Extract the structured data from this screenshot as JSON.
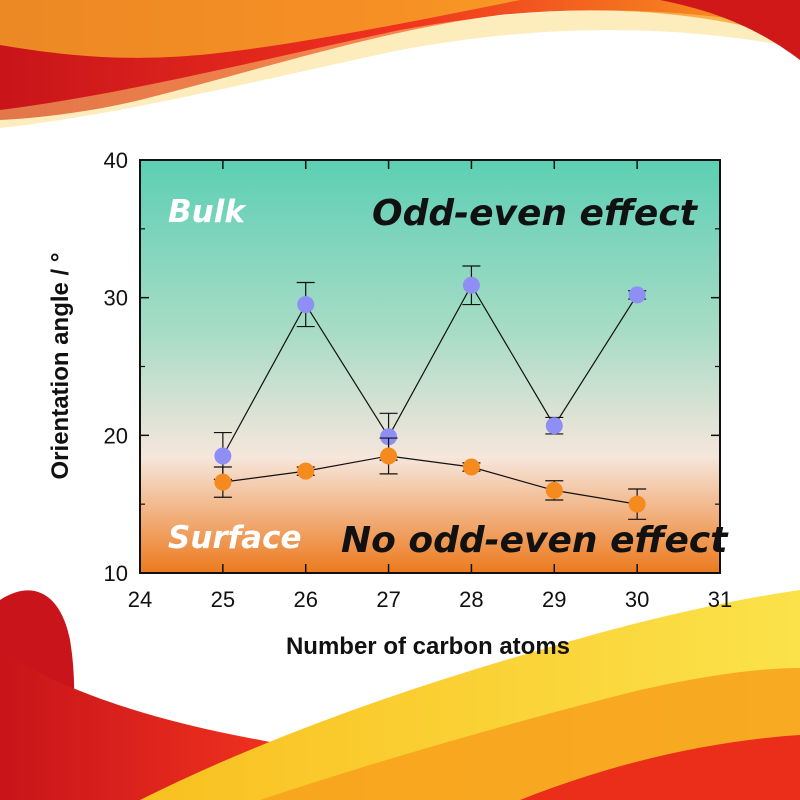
{
  "chart_data": {
    "type": "scatter",
    "title": "",
    "xlabel": "Number of carbon atoms",
    "ylabel": "Orientation angle / °",
    "xlim": [
      24,
      31
    ],
    "ylim": [
      10,
      40
    ],
    "xticks": [
      24,
      25,
      26,
      27,
      28,
      29,
      30,
      31
    ],
    "yticks": [
      10,
      20,
      30,
      40
    ],
    "grid": false,
    "legend": "none",
    "series": [
      {
        "color": "#8f8ef4",
        "x": [
          25,
          26,
          27,
          28,
          29,
          30
        ],
        "y": [
          18.5,
          29.5,
          19.9,
          30.9,
          20.7,
          30.2
        ],
        "err": [
          1.7,
          1.6,
          1.7,
          1.4,
          0.6,
          0.3
        ]
      },
      {
        "color": "#f58a1f",
        "x": [
          25,
          26,
          27,
          28,
          29,
          30
        ],
        "y": [
          16.6,
          17.4,
          18.5,
          17.7,
          16.0,
          15.0
        ],
        "err": [
          1.1,
          0.3,
          1.3,
          0.3,
          0.7,
          1.1
        ]
      }
    ],
    "annotations": {
      "bulk": "Bulk",
      "odd_even": "Odd-even effect",
      "surface": "Surface",
      "no_odd_even": "No odd-even effect"
    },
    "colors": {
      "bulk_region": "#5ccfb4",
      "transition": "#f6e6dc",
      "surface_region": "#ec7a1e"
    }
  }
}
